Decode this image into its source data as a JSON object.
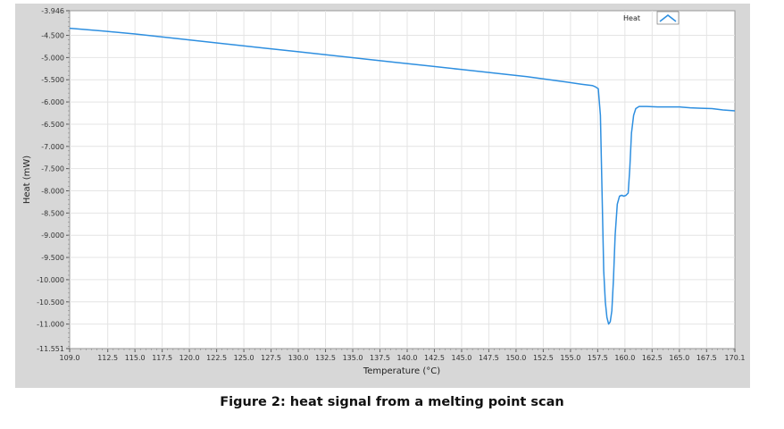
{
  "caption": "Figure 2: heat signal from a melting point scan",
  "chart_data": {
    "type": "line",
    "title": "",
    "xlabel": "Temperature (°C)",
    "ylabel": "Heat (mW)",
    "xlim": [
      109.0,
      170.1
    ],
    "ylim": [
      -11.551,
      -3.946
    ],
    "x_ticks": [
      109.0,
      112.5,
      115.0,
      117.5,
      120.0,
      122.5,
      125.0,
      127.5,
      130.0,
      132.5,
      135.0,
      137.5,
      140.0,
      142.5,
      145.0,
      147.5,
      150.0,
      152.5,
      155.0,
      157.5,
      160.0,
      162.5,
      165.0,
      167.5,
      170.1
    ],
    "x_tick_labels": [
      "109.0",
      "112.5",
      "115.0",
      "117.5",
      "120.0",
      "122.5",
      "125.0",
      "127.5",
      "130.0",
      "132.5",
      "135.0",
      "137.5",
      "140.0",
      "142.5",
      "145.0",
      "147.5",
      "150.0",
      "152.5",
      "155.0",
      "157.5",
      "160.0",
      "162.5",
      "165.0",
      "167.5",
      "170.1"
    ],
    "y_ticks": [
      -3.946,
      -4.5,
      -5.0,
      -5.5,
      -6.0,
      -6.5,
      -7.0,
      -7.5,
      -8.0,
      -8.5,
      -9.0,
      -9.5,
      -10.0,
      -10.5,
      -11.0,
      -11.551
    ],
    "y_tick_labels": [
      "-3.946",
      "-4.500",
      "-5.000",
      "-5.500",
      "-6.000",
      "-6.500",
      "-7.000",
      "-7.500",
      "-8.000",
      "-8.500",
      "-9.000",
      "-9.500",
      "-10.000",
      "-10.500",
      "-11.000",
      "-11.551"
    ],
    "grid": true,
    "legend_position": "top-right",
    "colors": {
      "series": "#2e8fe0",
      "panel": "#d7d7d7",
      "plot_bg": "#ffffff",
      "grid": "#e4e4e4"
    },
    "series": [
      {
        "name": "Heat",
        "x": [
          109.0,
          112.0,
          115.0,
          118.0,
          121.0,
          124.0,
          127.0,
          130.0,
          133.0,
          136.0,
          139.0,
          142.0,
          145.0,
          148.0,
          151.0,
          154.0,
          156.0,
          157.0,
          157.3,
          157.55,
          157.75,
          157.9,
          158.05,
          158.2,
          158.35,
          158.5,
          158.65,
          158.8,
          158.95,
          159.1,
          159.3,
          159.5,
          159.7,
          159.9,
          160.1,
          160.3,
          160.45,
          160.6,
          160.8,
          161.0,
          161.3,
          162.0,
          163.0,
          164.0,
          165.0,
          166.0,
          167.0,
          168.0,
          169.0,
          170.1
        ],
        "y": [
          -4.34,
          -4.4,
          -4.47,
          -4.55,
          -4.63,
          -4.71,
          -4.79,
          -4.87,
          -4.95,
          -5.03,
          -5.11,
          -5.19,
          -5.27,
          -5.35,
          -5.43,
          -5.53,
          -5.6,
          -5.63,
          -5.66,
          -5.7,
          -6.3,
          -8.0,
          -9.8,
          -10.5,
          -10.85,
          -11.0,
          -10.95,
          -10.7,
          -10.0,
          -9.0,
          -8.3,
          -8.12,
          -8.1,
          -8.12,
          -8.1,
          -8.05,
          -7.5,
          -6.7,
          -6.3,
          -6.15,
          -6.1,
          -6.1,
          -6.11,
          -6.11,
          -6.11,
          -6.13,
          -6.14,
          -6.15,
          -6.18,
          -6.2
        ]
      }
    ]
  }
}
